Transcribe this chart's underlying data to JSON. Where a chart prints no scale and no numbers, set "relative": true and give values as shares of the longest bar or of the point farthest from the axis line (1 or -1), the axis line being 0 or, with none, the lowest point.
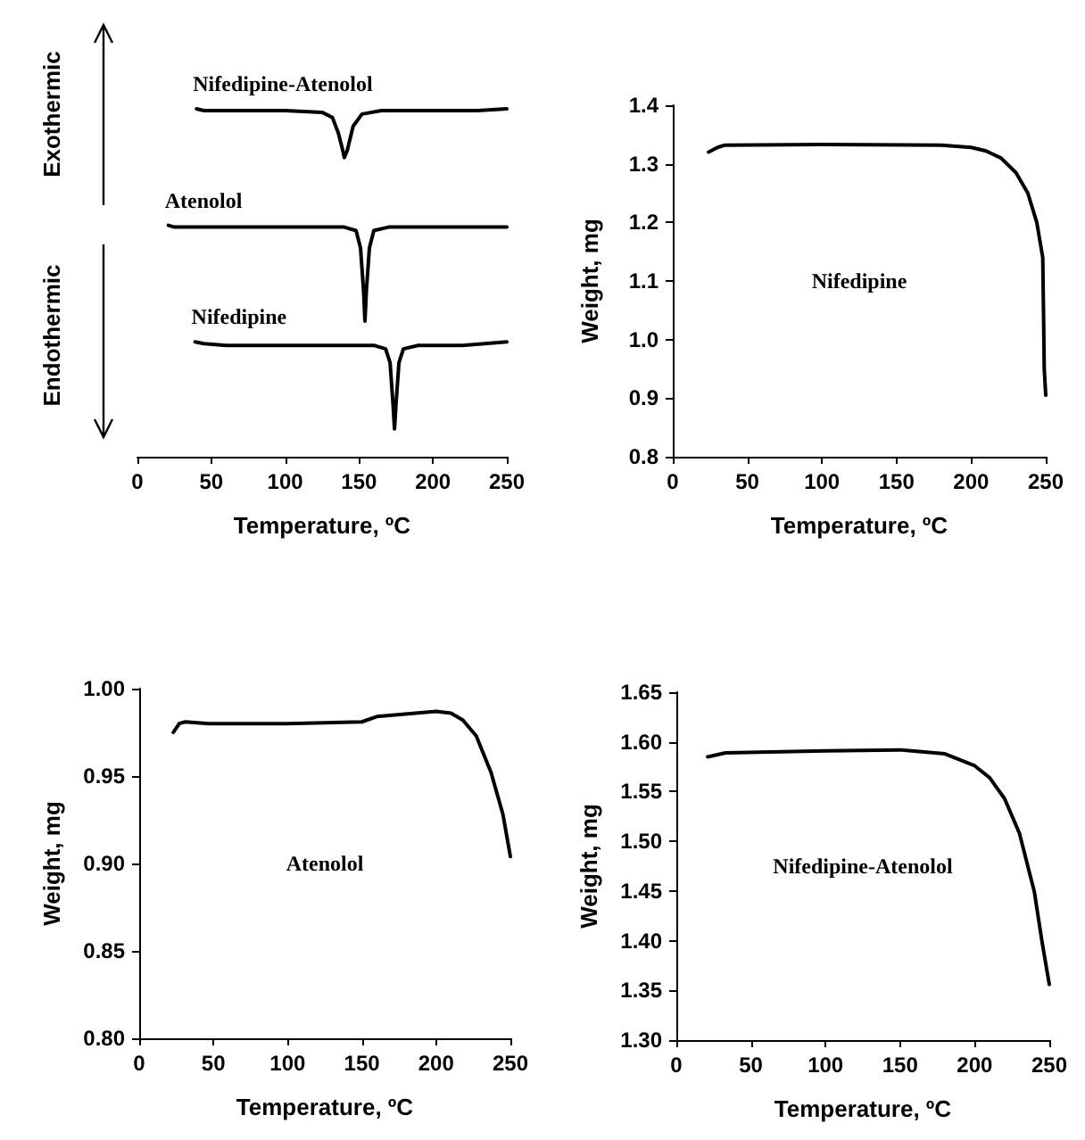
{
  "chart_data": [
    {
      "type": "line",
      "relative": true,
      "xlabel": "Temperature, ºC",
      "xlim": [
        0,
        250
      ],
      "xticks": [
        0,
        50,
        100,
        150,
        200,
        250
      ],
      "tick_labels": "x",
      "marker": "none",
      "annotations": [
        "Exothermic",
        "Endothermic"
      ],
      "series": [
        {
          "name": "Nifedipine-Atenolol",
          "color": "#000000",
          "x": [
            40,
            45,
            60,
            100,
            125,
            132,
            136,
            139,
            140,
            142,
            146,
            152,
            165,
            200,
            230,
            250
          ],
          "values": [
            1.0,
            0.995,
            0.995,
            0.995,
            0.99,
            0.975,
            0.93,
            0.88,
            0.86,
            0.88,
            0.95,
            0.985,
            0.995,
            0.995,
            0.995,
            1.0
          ]
        },
        {
          "name": "Atenolol",
          "color": "#000000",
          "x": [
            21,
            25,
            40,
            100,
            140,
            148,
            151,
            153,
            154,
            155,
            157,
            160,
            170,
            200,
            250
          ],
          "values": [
            0.665,
            0.66,
            0.66,
            0.66,
            0.66,
            0.65,
            0.6,
            0.48,
            0.39,
            0.48,
            0.6,
            0.65,
            0.66,
            0.66,
            0.66
          ]
        },
        {
          "name": "Nifedipine",
          "color": "#000000",
          "x": [
            39,
            45,
            60,
            100,
            160,
            168,
            171,
            173,
            174,
            175,
            177,
            180,
            190,
            220,
            250
          ],
          "values": [
            0.33,
            0.325,
            0.32,
            0.32,
            0.32,
            0.31,
            0.27,
            0.15,
            0.08,
            0.15,
            0.27,
            0.31,
            0.32,
            0.32,
            0.33
          ]
        }
      ]
    },
    {
      "type": "line",
      "xlabel": "Temperature, ºC",
      "ylabel": "Weight, mg",
      "xlim": [
        0,
        250
      ],
      "xticks": [
        0,
        50,
        100,
        150,
        200,
        250
      ],
      "ylim": [
        0.8,
        1.4
      ],
      "yticks": [
        0.8,
        0.9,
        {
          "value": 1.0,
          "label": "1.0"
        },
        1.1,
        1.2,
        1.3,
        1.4
      ],
      "marker": "none",
      "series": [
        {
          "name": "Nifedipine",
          "color": "#000000",
          "x": [
            24,
            30,
            35,
            100,
            180,
            200,
            210,
            220,
            230,
            238,
            244,
            248,
            248.5,
            249,
            250
          ],
          "values": [
            1.32,
            1.328,
            1.332,
            1.333,
            1.332,
            1.328,
            1.322,
            1.31,
            1.285,
            1.25,
            1.2,
            1.14,
            1.05,
            0.95,
            0.905
          ]
        }
      ]
    },
    {
      "type": "line",
      "xlabel": "Temperature, ºC",
      "ylabel": "Weight, mg",
      "xlim": [
        0,
        250
      ],
      "xticks": [
        0,
        50,
        100,
        150,
        200,
        250
      ],
      "ylim": [
        0.8,
        1.0
      ],
      "yticks": [
        {
          "value": 0.8,
          "label": "0.80"
        },
        {
          "value": 0.85,
          "label": "0.85"
        },
        {
          "value": 0.9,
          "label": "0.90"
        },
        {
          "value": 0.95,
          "label": "0.95"
        },
        {
          "value": 1.0,
          "label": "1.00"
        }
      ],
      "marker": "none",
      "series": [
        {
          "name": "Atenolol",
          "color": "#000000",
          "x": [
            23,
            27,
            31,
            47,
            100,
            150,
            160,
            200,
            210,
            218,
            227,
            237,
            245,
            250
          ],
          "values": [
            0.975,
            0.98,
            0.981,
            0.98,
            0.98,
            0.981,
            0.984,
            0.987,
            0.986,
            0.982,
            0.973,
            0.952,
            0.928,
            0.904
          ]
        }
      ]
    },
    {
      "type": "line",
      "xlabel": "Temperature, ºC",
      "ylabel": "Weight, mg",
      "xlim": [
        0,
        250
      ],
      "xticks": [
        0,
        50,
        100,
        150,
        200,
        250
      ],
      "ylim": [
        1.3,
        1.65
      ],
      "yticks": [
        {
          "value": 1.3,
          "label": "1.30"
        },
        {
          "value": 1.35,
          "label": "1.35"
        },
        {
          "value": 1.4,
          "label": "1.40"
        },
        {
          "value": 1.45,
          "label": "1.45"
        },
        {
          "value": 1.5,
          "label": "1.50"
        },
        {
          "value": 1.55,
          "label": "1.55"
        },
        {
          "value": 1.6,
          "label": "1.60"
        },
        {
          "value": 1.65,
          "label": "1.65"
        }
      ],
      "marker": "none",
      "series": [
        {
          "name": "Nifedipine-Atenolol",
          "color": "#000000",
          "x": [
            21,
            33,
            100,
            150,
            180,
            200,
            210,
            220,
            230,
            240,
            245,
            250
          ],
          "values": [
            1.585,
            1.589,
            1.591,
            1.592,
            1.588,
            1.576,
            1.564,
            1.543,
            1.508,
            1.449,
            1.4,
            1.356
          ]
        }
      ]
    }
  ]
}
